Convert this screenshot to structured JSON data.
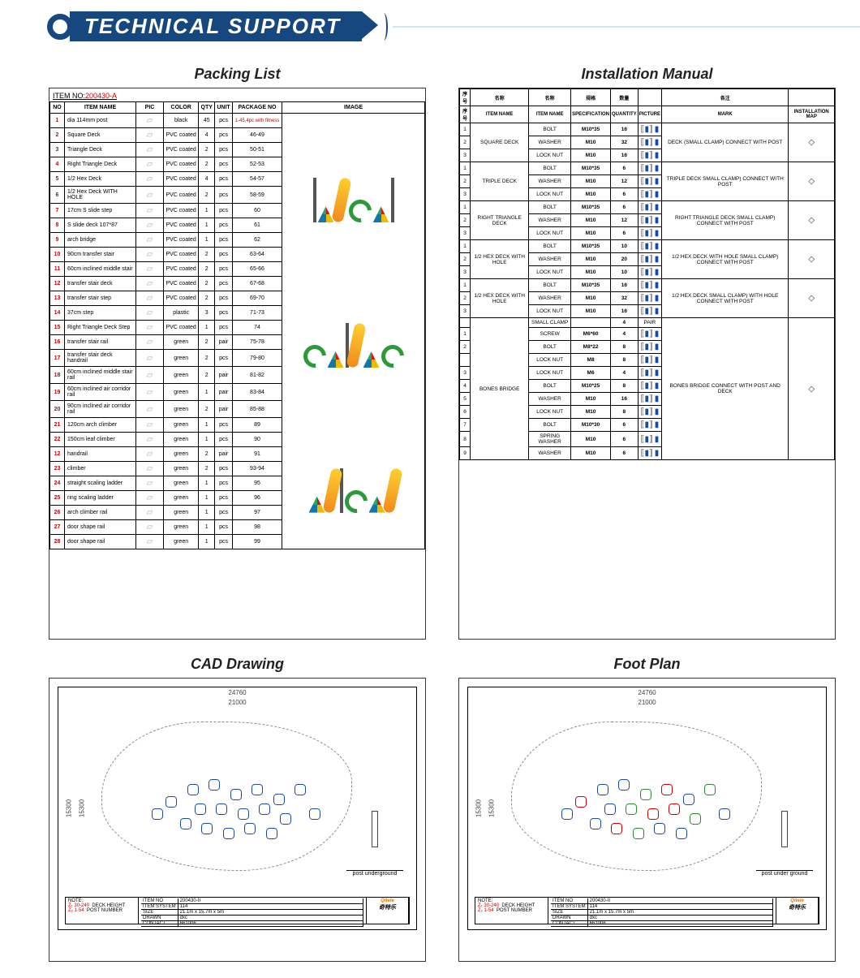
{
  "banner": {
    "title": "TECHNICAL SUPPORT"
  },
  "sections": {
    "packing": "Packing List",
    "install": "Installation Manual",
    "cad": "CAD Drawing",
    "foot": "Foot Plan"
  },
  "packing": {
    "item_no_label": "ITEM NO:",
    "item_no": "200430-A",
    "headers": [
      "NO",
      "ITEM NAME",
      "PIC",
      "COLOR",
      "QTY",
      "UNIT",
      "PACKAGE NO"
    ],
    "image_header": "IMAGE",
    "pkg1_note": "1-45,4pc with fitness",
    "rows": [
      {
        "no": "1",
        "name": "dia 114mm post",
        "color": "black",
        "qty": "45",
        "unit": "pcs",
        "pkg": ""
      },
      {
        "no": "2",
        "name": "Square Deck",
        "color": "PVC coated",
        "qty": "4",
        "unit": "pcs",
        "pkg": "46-49"
      },
      {
        "no": "3",
        "name": "Triangle Deck",
        "color": "PVC coated",
        "qty": "2",
        "unit": "pcs",
        "pkg": "50-51"
      },
      {
        "no": "4",
        "name": "Right Triangle Deck",
        "color": "PVC coated",
        "qty": "2",
        "unit": "pcs",
        "pkg": "52-53"
      },
      {
        "no": "5",
        "name": "1/2 Hex Deck",
        "color": "PVC coated",
        "qty": "4",
        "unit": "pcs",
        "pkg": "54-57"
      },
      {
        "no": "6",
        "name": "1/2 Hex Deck WITH HOLE",
        "color": "PVC coated",
        "qty": "2",
        "unit": "pcs",
        "pkg": "58-59"
      },
      {
        "no": "7",
        "name": "17cm S slide step",
        "color": "PVC coated",
        "qty": "1",
        "unit": "pcs",
        "pkg": "60"
      },
      {
        "no": "8",
        "name": "S slide deck 107*87",
        "color": "PVC coated",
        "qty": "1",
        "unit": "pcs",
        "pkg": "61"
      },
      {
        "no": "9",
        "name": "arch bridge",
        "color": "PVC coated",
        "qty": "1",
        "unit": "pcs",
        "pkg": "62"
      },
      {
        "no": "10",
        "name": "90cm transfer stair",
        "color": "PVC coated",
        "qty": "2",
        "unit": "pcs",
        "pkg": "63-64"
      },
      {
        "no": "11",
        "name": "60cm inclined middle stair",
        "color": "PVC coated",
        "qty": "2",
        "unit": "pcs",
        "pkg": "65-66"
      },
      {
        "no": "12",
        "name": "transfer stair deck",
        "color": "PVC coated",
        "qty": "2",
        "unit": "pcs",
        "pkg": "67-68"
      },
      {
        "no": "13",
        "name": "transfer stair step",
        "color": "PVC coated",
        "qty": "2",
        "unit": "pcs",
        "pkg": "69-70"
      },
      {
        "no": "14",
        "name": "37cm step",
        "color": "plastic",
        "qty": "3",
        "unit": "pcs",
        "pkg": "71-73"
      },
      {
        "no": "15",
        "name": "Right Triangle Deck Step",
        "color": "PVC coated",
        "qty": "1",
        "unit": "pcs",
        "pkg": "74"
      },
      {
        "no": "16",
        "name": "transfer stair rail",
        "color": "green",
        "qty": "2",
        "unit": "pair",
        "pkg": "75-78"
      },
      {
        "no": "17",
        "name": "transfer stair deck handrail",
        "color": "green",
        "qty": "2",
        "unit": "pcs",
        "pkg": "79-80"
      },
      {
        "no": "18",
        "name": "60cm inclined middle stair rail",
        "color": "green",
        "qty": "2",
        "unit": "pair",
        "pkg": "81-82"
      },
      {
        "no": "19",
        "name": "60cm inclined air corridor rail",
        "color": "green",
        "qty": "1",
        "unit": "pair",
        "pkg": "83-84"
      },
      {
        "no": "20",
        "name": "90cm inclined air corridor rail",
        "color": "green",
        "qty": "2",
        "unit": "pair",
        "pkg": "85-88"
      },
      {
        "no": "21",
        "name": "120cm arch climber",
        "color": "green",
        "qty": "1",
        "unit": "pcs",
        "pkg": "89"
      },
      {
        "no": "22",
        "name": "150cm leaf climber",
        "color": "green",
        "qty": "1",
        "unit": "pcs",
        "pkg": "90"
      },
      {
        "no": "12",
        "name": "handrail",
        "color": "green",
        "qty": "2",
        "unit": "pair",
        "pkg": "91"
      },
      {
        "no": "23",
        "name": "climber",
        "color": "green",
        "qty": "2",
        "unit": "pcs",
        "pkg": "93-94"
      },
      {
        "no": "24",
        "name": "straight scaling ladder",
        "color": "green",
        "qty": "1",
        "unit": "pcs",
        "pkg": "95"
      },
      {
        "no": "25",
        "name": "ring scaling ladder",
        "color": "green",
        "qty": "1",
        "unit": "pcs",
        "pkg": "96"
      },
      {
        "no": "26",
        "name": "arch climber rail",
        "color": "green",
        "qty": "1",
        "unit": "pcs",
        "pkg": "97"
      },
      {
        "no": "27",
        "name": "door shape rail",
        "color": "green",
        "qty": "1",
        "unit": "pcs",
        "pkg": "98"
      },
      {
        "no": "28",
        "name": "door shape rail",
        "color": "green",
        "qty": "1",
        "unit": "pcs",
        "pkg": "99"
      }
    ]
  },
  "install": {
    "headers": [
      "名称",
      "名称",
      "规格",
      "数量",
      "",
      "各注",
      ""
    ],
    "headers_en": [
      "序号",
      "ITEM NAME",
      "ITEM NAME",
      "SPECIFICATION",
      "QUANTITY",
      "PICTURE",
      "MARK",
      "INSTALLATION MAP"
    ],
    "groups": [
      {
        "item": "SQUARE DECK",
        "rows": [
          {
            "n": "1",
            "p": "BOLT",
            "s": "M10*35",
            "q": "16"
          },
          {
            "n": "2",
            "p": "WASHER",
            "s": "M10",
            "q": "32"
          },
          {
            "n": "3",
            "p": "LOCK NUT",
            "s": "M10",
            "q": "16"
          }
        ],
        "mark": "DECK (SMALL CLAMP) CONNECT WITH POST"
      },
      {
        "item": "TRIPLE DECK",
        "rows": [
          {
            "n": "1",
            "p": "BOLT",
            "s": "M10*35",
            "q": "6"
          },
          {
            "n": "2",
            "p": "WASHER",
            "s": "M10",
            "q": "12"
          },
          {
            "n": "3",
            "p": "LOCK NUT",
            "s": "M10",
            "q": "6"
          }
        ],
        "mark": "TRIPLE DECK SMALL CLAMP) CONNECT WITH POST"
      },
      {
        "item": "RIGHT TRIANGLE DECK",
        "rows": [
          {
            "n": "1",
            "p": "BOLT",
            "s": "M10*35",
            "q": "6"
          },
          {
            "n": "2",
            "p": "WASHER",
            "s": "M10",
            "q": "12"
          },
          {
            "n": "3",
            "p": "LOCK NUT",
            "s": "M10",
            "q": "6"
          }
        ],
        "mark": "RIGHT TRIANGLE DECK SMALL CLAMP) CONNECT WITH POST"
      },
      {
        "item": "1/2 HEX DECK WITH HOLE",
        "rows": [
          {
            "n": "1",
            "p": "BOLT",
            "s": "M10*35",
            "q": "10"
          },
          {
            "n": "2",
            "p": "WASHER",
            "s": "M10",
            "q": "20"
          },
          {
            "n": "3",
            "p": "LOCK NUT",
            "s": "M10",
            "q": "10"
          }
        ],
        "mark": "1/2 HEX DECK WITH HOLE SMALL CLAMP) CONNECT WITH POST"
      },
      {
        "item": "1/2 HEX DECK WITH HOLE",
        "rows": [
          {
            "n": "1",
            "p": "BOLT",
            "s": "M10*35",
            "q": "16"
          },
          {
            "n": "2",
            "p": "WASHER",
            "s": "M10",
            "q": "32"
          },
          {
            "n": "3",
            "p": "LOCK NUT",
            "s": "M10",
            "q": "16"
          }
        ],
        "mark": "1/2 HEX DECK SMALL CLAMP) WITH HOLE CONNECT WITH POST"
      },
      {
        "item": "BONES BRIDGE",
        "rows": [
          {
            "n": "",
            "p": "SMALL CLAMP",
            "s": "",
            "q": "4"
          },
          {
            "n": "1",
            "p": "SCREW",
            "s": "M6*60",
            "q": "4"
          },
          {
            "n": "2",
            "p": "BOLT",
            "s": "M8*22",
            "q": "8"
          },
          {
            "n": "",
            "p": "LOCK NUT",
            "s": "M8",
            "q": "8"
          },
          {
            "n": "3",
            "p": "LOCK NUT",
            "s": "M6",
            "q": "4"
          },
          {
            "n": "4",
            "p": "BOLT",
            "s": "M10*25",
            "q": "8"
          },
          {
            "n": "5",
            "p": "WASHER",
            "s": "M10",
            "q": "16"
          },
          {
            "n": "6",
            "p": "LOCK NUT",
            "s": "M10",
            "q": "8"
          },
          {
            "n": "7",
            "p": "BOLT",
            "s": "M10*30",
            "q": "6"
          },
          {
            "n": "8",
            "p": "SPRING WASHER",
            "s": "M10",
            "q": "6"
          },
          {
            "n": "9",
            "p": "WASHER",
            "s": "M10",
            "q": "6"
          }
        ],
        "pair": "PAIR",
        "mark": "BONES BRIDGE CONNECT WITH POST AND DECK"
      }
    ]
  },
  "cad": {
    "outer_w": "24760",
    "inner_w": "21000",
    "outer_h": "15300",
    "inner_h": "15300",
    "post_label": "post underground",
    "titleblock": {
      "note_label": "NOTE:",
      "z1": "Z₁  30-240",
      "z2": "Z₂  1-54",
      "z1_label": "DECK HEIGHT",
      "z2_label": "POST NUMBER",
      "fields": {
        "ITEM NO": "200430-II",
        "ITEM SYSTEM": "114",
        "SIZE": "21.1m x 15.7m x 5m",
        "DRAWN": "dxc",
        "CONTACT": "661006"
      },
      "logo": "Qitele"
    }
  },
  "foot": {
    "outer_w": "24760",
    "inner_w": "21000",
    "outer_h": "15300",
    "inner_h": "15300",
    "post_label": "post under ground",
    "titleblock": {
      "note_label": "NOTE:",
      "z1": "Z₁  30-240",
      "z2": "Z₂  1-54",
      "z1_label": "DECK HEIGHT",
      "z2_label": "POST NUMBER",
      "fields": {
        "ITEM NO": "200430-II",
        "ITEM SYSTEM": "114",
        "SIZE": "21.1m x 15.7m x 5m",
        "DRAWN": "dxc",
        "CONTACT": "661006"
      },
      "logo": "Qitele"
    }
  },
  "colors": {
    "brand": "#16477f",
    "accent_red": "#c00",
    "green": "#2a8a2a"
  }
}
